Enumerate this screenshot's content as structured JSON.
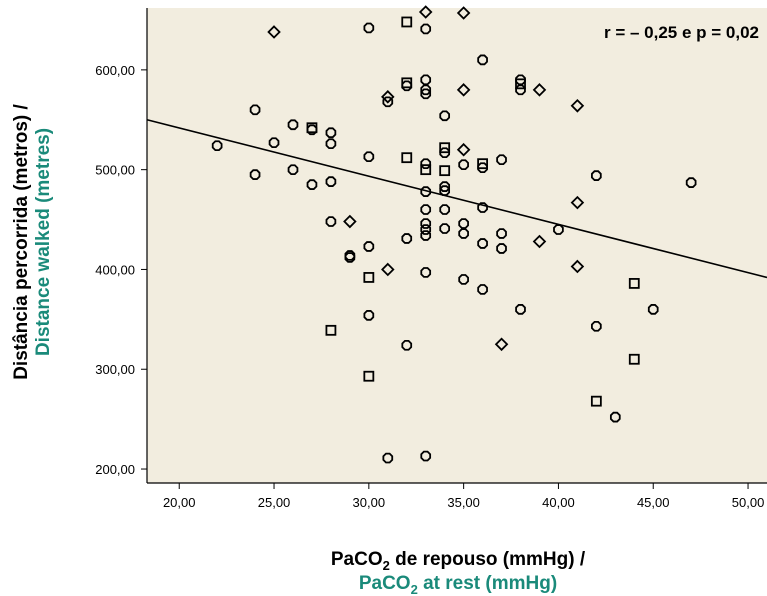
{
  "chart_data": {
    "type": "scatter",
    "annotation": "r = – 0,25 e p = 0,02",
    "xlabel_pt": {
      "pre": "PaCO",
      "sub": "2",
      "post": " de repouso (mmHg) /"
    },
    "xlabel_en": {
      "pre": "PaCO",
      "sub": "2",
      "post": " at rest (mmHg)"
    },
    "ylabel_pt": "Distância percorrida (metros) /",
    "ylabel_en": "Distance walked (metres)",
    "xlim": [
      18.3,
      51.0
    ],
    "ylim": [
      186,
      662
    ],
    "x_ticks": [
      20,
      25,
      30,
      35,
      40,
      45,
      50
    ],
    "x_tick_labels": [
      "20,00",
      "25,00",
      "30,00",
      "35,00",
      "40,00",
      "45,00",
      "50,00"
    ],
    "y_ticks": [
      200,
      300,
      400,
      500,
      600
    ],
    "y_tick_labels": [
      "200,00",
      "300,00",
      "400,00",
      "500,00",
      "600,00"
    ],
    "grid": false,
    "legend": "none",
    "regression_line": {
      "x": [
        18.3,
        51.0
      ],
      "y": [
        550,
        392
      ]
    },
    "points": [
      {
        "x": 22,
        "y": 524,
        "m": "o"
      },
      {
        "x": 24,
        "y": 560,
        "m": "o"
      },
      {
        "x": 24,
        "y": 495,
        "m": "o"
      },
      {
        "x": 25,
        "y": 638,
        "m": "d"
      },
      {
        "x": 25,
        "y": 527,
        "m": "o"
      },
      {
        "x": 26,
        "y": 545,
        "m": "o"
      },
      {
        "x": 26,
        "y": 500,
        "m": "o"
      },
      {
        "x": 27,
        "y": 540,
        "m": "o"
      },
      {
        "x": 27,
        "y": 542,
        "m": "s"
      },
      {
        "x": 27,
        "y": 485,
        "m": "o"
      },
      {
        "x": 28,
        "y": 537,
        "m": "o"
      },
      {
        "x": 28,
        "y": 526,
        "m": "o"
      },
      {
        "x": 28,
        "y": 488,
        "m": "o"
      },
      {
        "x": 28,
        "y": 448,
        "m": "o"
      },
      {
        "x": 28,
        "y": 339,
        "m": "s"
      },
      {
        "x": 29,
        "y": 448,
        "m": "d"
      },
      {
        "x": 29,
        "y": 414,
        "m": "o"
      },
      {
        "x": 29,
        "y": 412,
        "m": "o"
      },
      {
        "x": 30,
        "y": 642,
        "m": "o"
      },
      {
        "x": 30,
        "y": 513,
        "m": "o"
      },
      {
        "x": 30,
        "y": 423,
        "m": "o"
      },
      {
        "x": 30,
        "y": 392,
        "m": "s"
      },
      {
        "x": 30,
        "y": 354,
        "m": "o"
      },
      {
        "x": 30,
        "y": 293,
        "m": "s"
      },
      {
        "x": 31,
        "y": 573,
        "m": "d"
      },
      {
        "x": 31,
        "y": 568,
        "m": "o"
      },
      {
        "x": 31,
        "y": 400,
        "m": "d"
      },
      {
        "x": 31,
        "y": 211,
        "m": "o"
      },
      {
        "x": 32,
        "y": 648,
        "m": "s"
      },
      {
        "x": 32,
        "y": 587,
        "m": "s"
      },
      {
        "x": 32,
        "y": 584,
        "m": "o"
      },
      {
        "x": 32,
        "y": 512,
        "m": "s"
      },
      {
        "x": 32,
        "y": 431,
        "m": "o"
      },
      {
        "x": 32,
        "y": 324,
        "m": "o"
      },
      {
        "x": 33,
        "y": 658,
        "m": "d"
      },
      {
        "x": 33,
        "y": 641,
        "m": "o"
      },
      {
        "x": 33,
        "y": 590,
        "m": "o"
      },
      {
        "x": 33,
        "y": 580,
        "m": "o"
      },
      {
        "x": 33,
        "y": 576,
        "m": "o"
      },
      {
        "x": 33,
        "y": 506,
        "m": "o"
      },
      {
        "x": 33,
        "y": 500,
        "m": "s"
      },
      {
        "x": 33,
        "y": 478,
        "m": "o"
      },
      {
        "x": 33,
        "y": 460,
        "m": "o"
      },
      {
        "x": 33,
        "y": 446,
        "m": "o"
      },
      {
        "x": 33,
        "y": 440,
        "m": "o"
      },
      {
        "x": 33,
        "y": 434,
        "m": "o"
      },
      {
        "x": 33,
        "y": 397,
        "m": "o"
      },
      {
        "x": 33,
        "y": 213,
        "m": "o"
      },
      {
        "x": 34,
        "y": 554,
        "m": "o"
      },
      {
        "x": 34,
        "y": 522,
        "m": "s"
      },
      {
        "x": 34,
        "y": 517,
        "m": "o"
      },
      {
        "x": 34,
        "y": 499,
        "m": "s"
      },
      {
        "x": 34,
        "y": 483,
        "m": "o"
      },
      {
        "x": 34,
        "y": 479,
        "m": "o"
      },
      {
        "x": 34,
        "y": 460,
        "m": "o"
      },
      {
        "x": 34,
        "y": 441,
        "m": "o"
      },
      {
        "x": 35,
        "y": 657,
        "m": "d"
      },
      {
        "x": 35,
        "y": 580,
        "m": "d"
      },
      {
        "x": 35,
        "y": 520,
        "m": "d"
      },
      {
        "x": 35,
        "y": 505,
        "m": "o"
      },
      {
        "x": 35,
        "y": 446,
        "m": "o"
      },
      {
        "x": 35,
        "y": 436,
        "m": "o"
      },
      {
        "x": 35,
        "y": 390,
        "m": "o"
      },
      {
        "x": 36,
        "y": 610,
        "m": "o"
      },
      {
        "x": 36,
        "y": 506,
        "m": "s"
      },
      {
        "x": 36,
        "y": 502,
        "m": "o"
      },
      {
        "x": 36,
        "y": 462,
        "m": "o"
      },
      {
        "x": 36,
        "y": 426,
        "m": "o"
      },
      {
        "x": 36,
        "y": 380,
        "m": "o"
      },
      {
        "x": 37,
        "y": 510,
        "m": "o"
      },
      {
        "x": 37,
        "y": 436,
        "m": "o"
      },
      {
        "x": 37,
        "y": 421,
        "m": "o"
      },
      {
        "x": 37,
        "y": 325,
        "m": "d"
      },
      {
        "x": 38,
        "y": 590,
        "m": "o"
      },
      {
        "x": 38,
        "y": 586,
        "m": "s"
      },
      {
        "x": 38,
        "y": 580,
        "m": "o"
      },
      {
        "x": 38,
        "y": 360,
        "m": "o"
      },
      {
        "x": 39,
        "y": 580,
        "m": "d"
      },
      {
        "x": 39,
        "y": 428,
        "m": "d"
      },
      {
        "x": 40,
        "y": 440,
        "m": "o"
      },
      {
        "x": 41,
        "y": 564,
        "m": "d"
      },
      {
        "x": 41,
        "y": 467,
        "m": "d"
      },
      {
        "x": 41,
        "y": 403,
        "m": "d"
      },
      {
        "x": 42,
        "y": 494,
        "m": "o"
      },
      {
        "x": 42,
        "y": 343,
        "m": "o"
      },
      {
        "x": 42,
        "y": 268,
        "m": "s"
      },
      {
        "x": 43,
        "y": 252,
        "m": "o"
      },
      {
        "x": 44,
        "y": 386,
        "m": "s"
      },
      {
        "x": 44,
        "y": 310,
        "m": "s"
      },
      {
        "x": 45,
        "y": 360,
        "m": "o"
      },
      {
        "x": 47,
        "y": 487,
        "m": "o"
      }
    ]
  }
}
